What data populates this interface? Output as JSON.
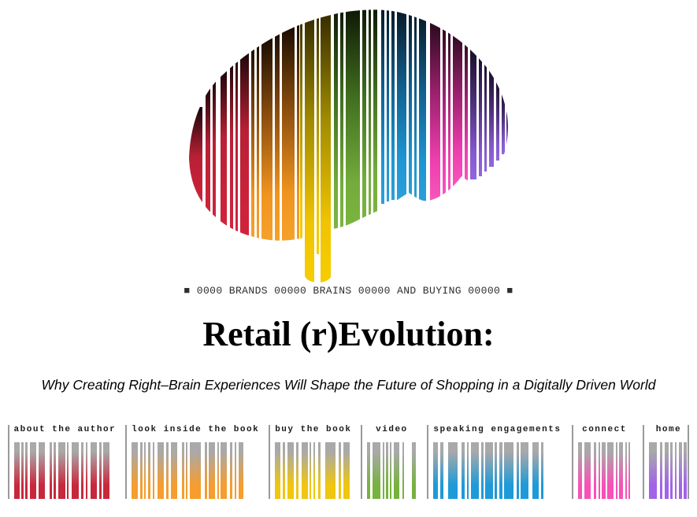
{
  "page": {
    "background_color": "#ffffff"
  },
  "logo": {
    "icon": "barcode-brain-logo",
    "tagline": "■ 0000 BRANDS 00000 BRAINS 00000 AND BUYING 00000 ■",
    "palette": {
      "red": "#c22136",
      "orange": "#f2951f",
      "yellow": "#f2c500",
      "green": "#76ad3e",
      "blue": "#2097d3",
      "pink": "#ef40b0",
      "purple": "#8f64d6"
    }
  },
  "hero": {
    "title": "Retail (r)Evolution:",
    "subtitle": "Why Creating Right–Brain Experiences Will Shape the Future of Shopping in a Digitally Driven World"
  },
  "nav": {
    "separator_color": "#9a9a9a",
    "bar_top_color": "#a9a9a9",
    "items": [
      {
        "id": "about",
        "label": "about the author",
        "color": "#c9273c"
      },
      {
        "id": "look-inside",
        "label": "look inside the book",
        "color": "#f59d2e"
      },
      {
        "id": "buy",
        "label": "buy the book",
        "color": "#f0c60e"
      },
      {
        "id": "video",
        "label": "video",
        "color": "#77b23f"
      },
      {
        "id": "speaking",
        "label": "speaking engagements",
        "color": "#1e9ad8"
      },
      {
        "id": "connect",
        "label": "connect",
        "color": "#f751b7"
      },
      {
        "id": "home",
        "label": "home",
        "color": "#a263e8"
      }
    ]
  }
}
